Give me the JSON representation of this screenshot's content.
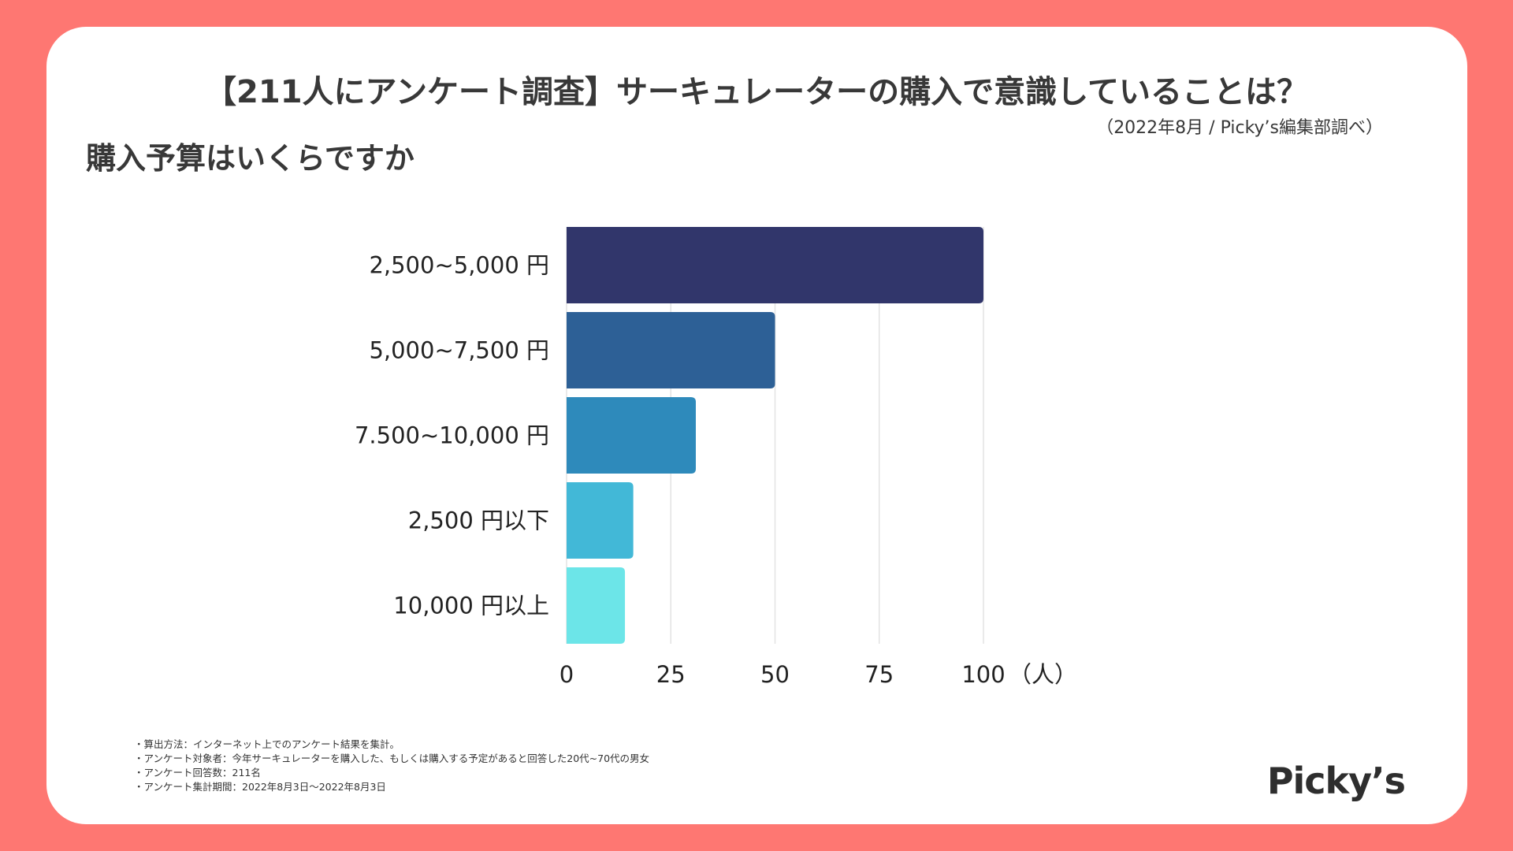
{
  "header": {
    "title": "【211人にアンケート調査】サーキュレーターの購入で意識していることは？",
    "source": "（2022年8月 / Picky’s編集部調べ）",
    "question": "購入予算はいくらですか"
  },
  "chart_data": {
    "type": "bar",
    "orientation": "horizontal",
    "categories": [
      "2,500~5,000 円",
      "5,000~7,500 円",
      "7.500~10,000 円",
      "2,500 円以下",
      "10,000 円以上"
    ],
    "values": [
      100,
      50,
      31,
      16,
      14
    ],
    "colors": [
      "#31366b",
      "#2d6096",
      "#2e8abb",
      "#42b8d7",
      "#6ce5e8"
    ],
    "xlim": [
      0,
      100
    ],
    "xticks": [
      "0",
      "25",
      "50",
      "75",
      "100"
    ],
    "xlabel": "（人）",
    "grid": true,
    "legend": "none"
  },
  "notes": [
    "・算出方法：インターネット上でのアンケート結果を集計。",
    "・アンケート対象者：今年サーキュレーターを購入した、もしくは購入する予定があると回答した20代~70代の男女",
    "・アンケート回答数：211名",
    "・アンケート集計期間：2022年8月3日〜2022年8月3日"
  ],
  "brand": {
    "logo_text": "Picky’s",
    "background": "#fe7772"
  }
}
